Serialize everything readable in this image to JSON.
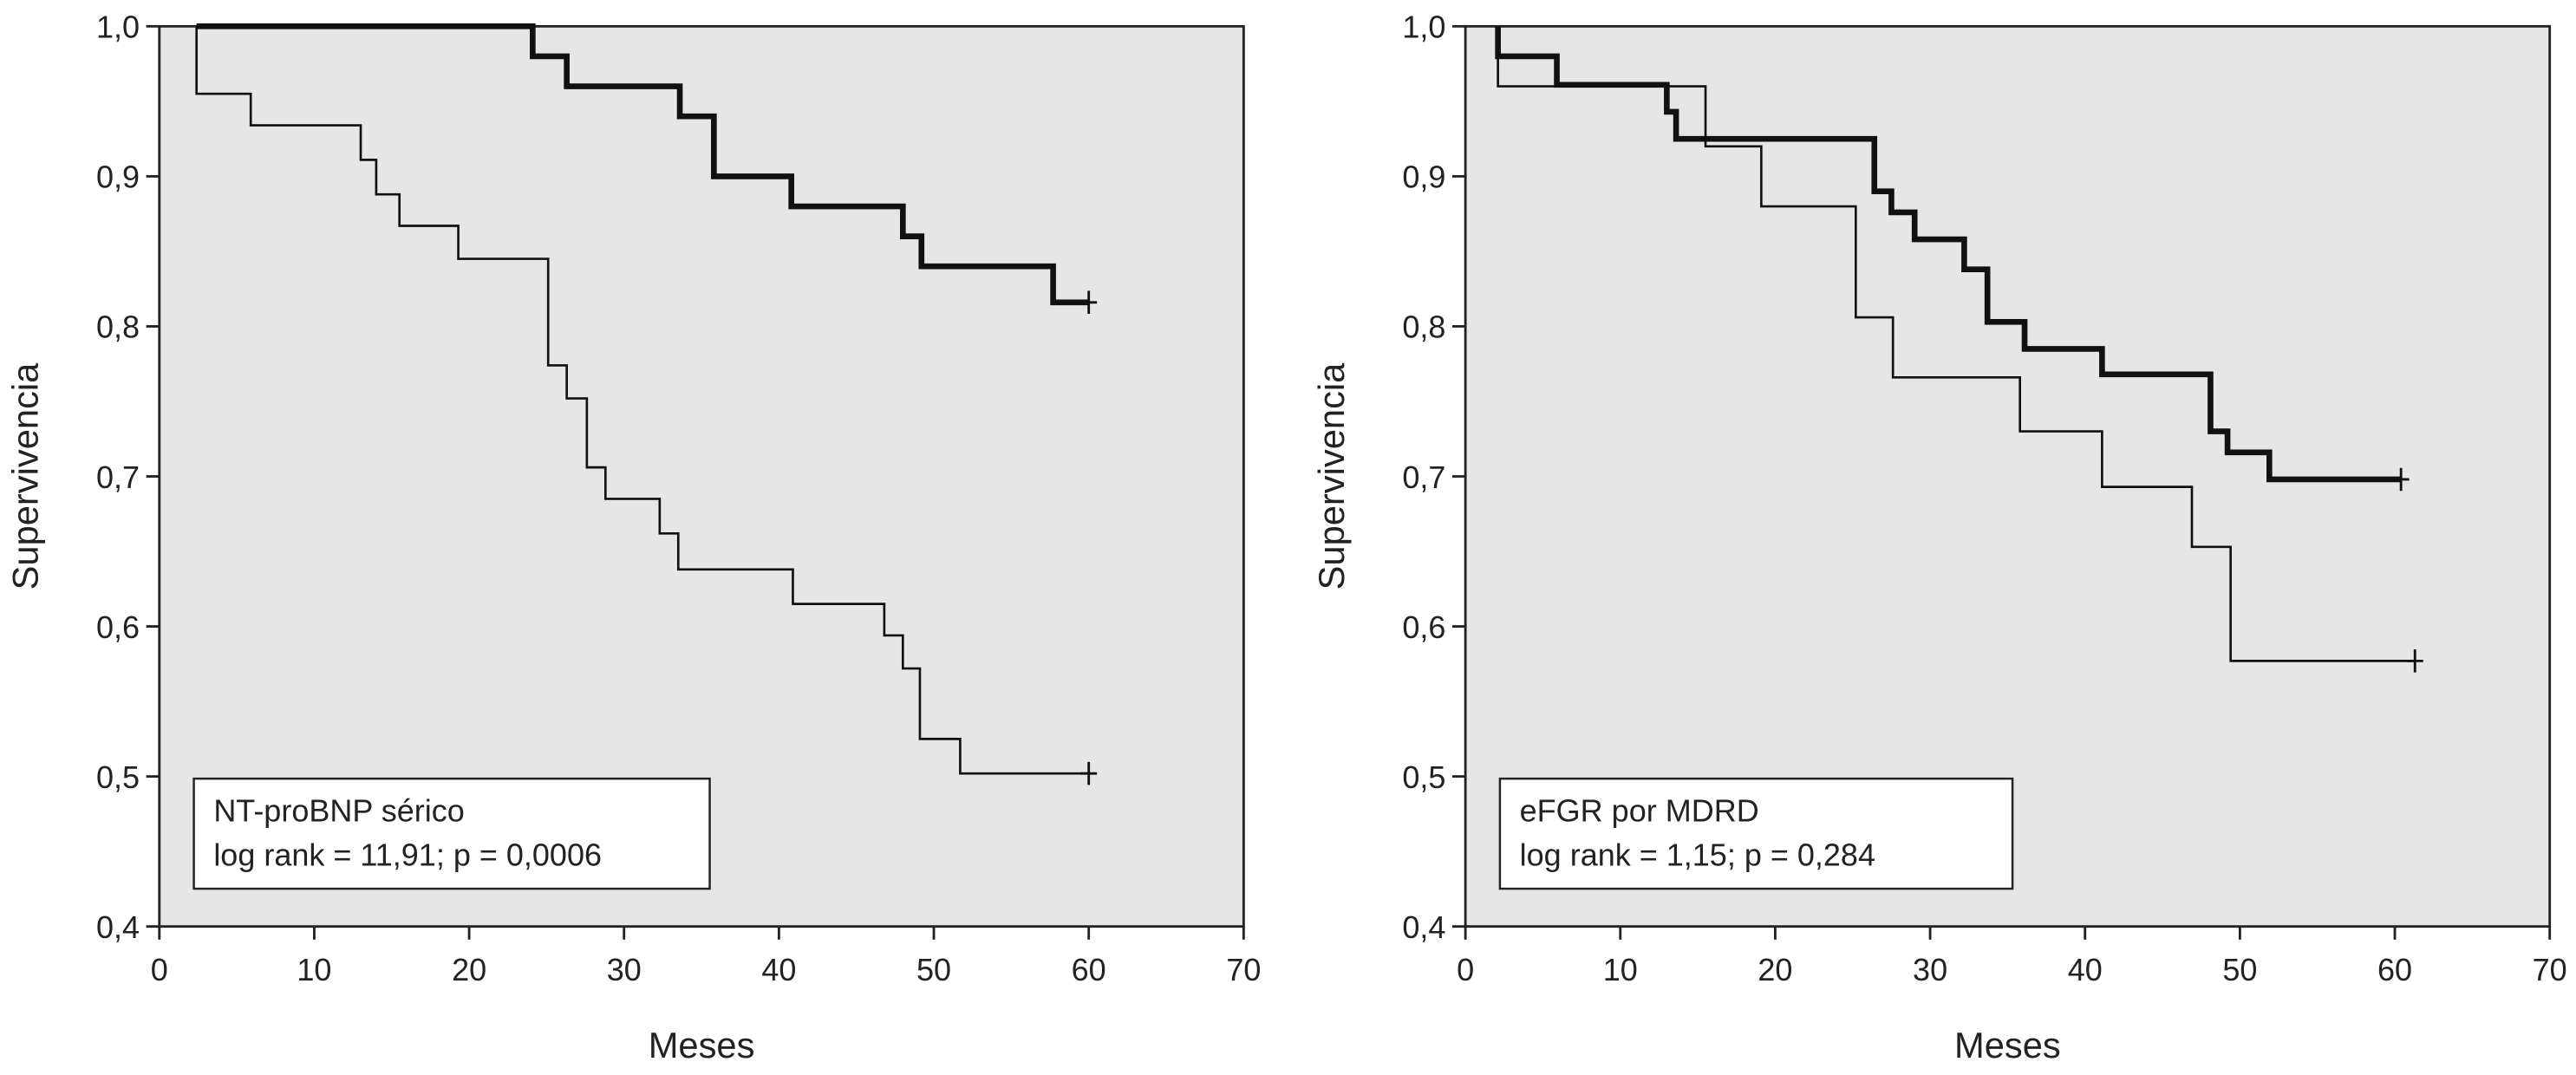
{
  "chart_data": [
    {
      "type": "step",
      "xlabel": "Meses",
      "ylabel": "Supervivencia",
      "xlim": [
        0,
        70
      ],
      "ylim": [
        0.4,
        1.0
      ],
      "xticks": [
        0,
        10,
        20,
        30,
        40,
        50,
        60,
        70
      ],
      "yticks": [
        {
          "value": 0.4,
          "label": "0,4"
        },
        {
          "value": 0.5,
          "label": "0,5"
        },
        {
          "value": 0.6,
          "label": "0,6"
        },
        {
          "value": 0.7,
          "label": "0,7"
        },
        {
          "value": 0.8,
          "label": "0,8"
        },
        {
          "value": 0.9,
          "label": "0,9"
        },
        {
          "value": 1.0,
          "label": "1,0"
        }
      ],
      "plot_background": "#e6e6e6",
      "annotations": [
        "NT-proBNP sérico",
        "log rank = 11,91; p = 0,0006"
      ],
      "series": [
        {
          "color": "#111111",
          "line_width": 3.5,
          "x": [
            2.4,
            24.1,
            26.3,
            33.6,
            35.8,
            40.8,
            48.0,
            49.2,
            57.7,
            60.0
          ],
          "values": [
            1.0,
            0.98,
            0.96,
            0.94,
            0.9,
            0.88,
            0.86,
            0.84,
            0.816,
            0.816
          ]
        },
        {
          "color": "#111111",
          "line_width": 1.4,
          "x": [
            2.4,
            2.4,
            5.9,
            13.0,
            14.0,
            15.5,
            19.3,
            25.1,
            26.3,
            27.6,
            28.8,
            32.3,
            33.5,
            40.9,
            46.8,
            48.0,
            49.1,
            51.7,
            60.0
          ],
          "values": [
            1.0,
            0.955,
            0.934,
            0.911,
            0.888,
            0.867,
            0.845,
            0.774,
            0.752,
            0.706,
            0.685,
            0.662,
            0.638,
            0.615,
            0.594,
            0.572,
            0.525,
            0.502,
            0.502
          ]
        }
      ]
    },
    {
      "type": "step",
      "xlabel": "Meses",
      "ylabel": "Supervivencia",
      "xlim": [
        0,
        70
      ],
      "ylim": [
        0.4,
        1.0
      ],
      "xticks": [
        0,
        10,
        20,
        30,
        40,
        50,
        60,
        70
      ],
      "yticks": [
        {
          "value": 0.4,
          "label": "0,4"
        },
        {
          "value": 0.5,
          "label": "0,5"
        },
        {
          "value": 0.6,
          "label": "0,6"
        },
        {
          "value": 0.7,
          "label": "0,7"
        },
        {
          "value": 0.8,
          "label": "0,8"
        },
        {
          "value": 0.9,
          "label": "0,9"
        },
        {
          "value": 1.0,
          "label": "1,0"
        }
      ],
      "plot_background": "#e6e6e6",
      "annotations": [
        "eFGR por MDRD",
        "log rank = 1,15; p = 0,284"
      ],
      "series": [
        {
          "color": "#111111",
          "line_width": 3.5,
          "x": [
            2.1,
            2.1,
            5.9,
            13.0,
            13.6,
            26.4,
            27.5,
            29.0,
            32.2,
            33.7,
            36.1,
            41.1,
            48.1,
            49.2,
            51.9,
            60.4
          ],
          "values": [
            1.0,
            0.98,
            0.961,
            0.943,
            0.925,
            0.89,
            0.876,
            0.858,
            0.838,
            0.803,
            0.785,
            0.768,
            0.73,
            0.716,
            0.698,
            0.698
          ]
        },
        {
          "color": "#111111",
          "line_width": 1.4,
          "x": [
            2.1,
            2.1,
            15.5,
            19.1,
            25.2,
            27.6,
            35.8,
            41.1,
            46.9,
            49.4,
            61.3
          ],
          "values": [
            1.0,
            0.96,
            0.92,
            0.88,
            0.806,
            0.766,
            0.73,
            0.693,
            0.653,
            0.577,
            0.577
          ]
        }
      ]
    }
  ]
}
